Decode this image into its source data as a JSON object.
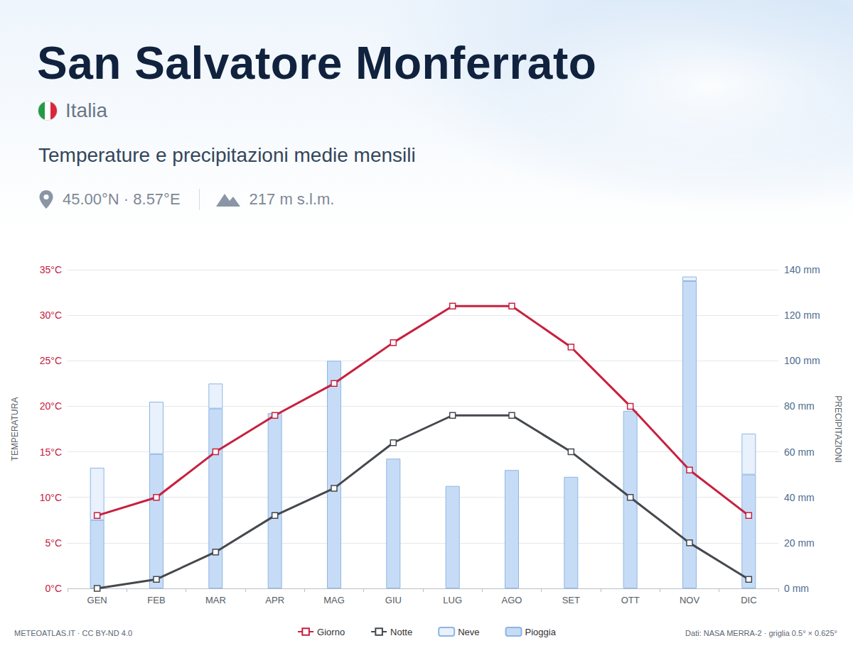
{
  "header": {
    "title": "San Salvatore Monferrato",
    "country": "Italia",
    "subtitle": "Temperature e precipitazioni medie mensili",
    "coordinates": "45.00°N · 8.57°E",
    "elevation": "217 m s.l.m."
  },
  "footer": {
    "left": "METEOATLAS.IT · CC BY-ND 4.0",
    "right": "Dati: NASA MERRA-2 · griglia 0.5° × 0.625°"
  },
  "chart_data": {
    "type": "bar",
    "categories": [
      "GEN",
      "FEB",
      "MAR",
      "APR",
      "MAG",
      "GIU",
      "LUG",
      "AGO",
      "SET",
      "OTT",
      "NOV",
      "DIC"
    ],
    "ylabel": "TEMPERATURA",
    "y2label": "PRECIPITAZIONI",
    "ylim": [
      0,
      35
    ],
    "yticks": [
      {
        "value": 0,
        "label": "0°C"
      },
      {
        "value": 5,
        "label": "5°C"
      },
      {
        "value": 10,
        "label": "10°C"
      },
      {
        "value": 15,
        "label": "15°C"
      },
      {
        "value": 20,
        "label": "20°C"
      },
      {
        "value": 25,
        "label": "25°C"
      },
      {
        "value": 30,
        "label": "30°C"
      },
      {
        "value": 35,
        "label": "35°C"
      }
    ],
    "y2lim": [
      0,
      140
    ],
    "y2ticks": [
      {
        "value": 0,
        "label": "0 mm"
      },
      {
        "value": 20,
        "label": "20 mm"
      },
      {
        "value": 40,
        "label": "40 mm"
      },
      {
        "value": 60,
        "label": "60 mm"
      },
      {
        "value": 80,
        "label": "80 mm"
      },
      {
        "value": 100,
        "label": "100 mm"
      },
      {
        "value": 120,
        "label": "120 mm"
      },
      {
        "value": 140,
        "label": "140 mm"
      }
    ],
    "grid": true,
    "legend": "bottom",
    "stacked": true,
    "series": [
      {
        "name": "Giorno",
        "type": "line",
        "color": "#c8203f",
        "marker": "square",
        "values": [
          8,
          10,
          15,
          19,
          22.5,
          27,
          31,
          31,
          26.5,
          20,
          13,
          8
        ]
      },
      {
        "name": "Notte",
        "type": "line",
        "color": "#45484d",
        "marker": "square",
        "values": [
          0,
          1,
          4,
          8,
          11,
          16,
          19,
          19,
          15,
          10,
          5,
          1
        ]
      },
      {
        "name": "Neve",
        "type": "bar",
        "axis": "y2",
        "color": "#e8f1fc",
        "values": [
          23,
          23,
          11,
          0,
          0,
          0,
          0,
          0,
          0,
          0,
          2,
          18
        ]
      },
      {
        "name": "Pioggia",
        "type": "bar",
        "axis": "y2",
        "color": "#c6dcf6",
        "values": [
          30,
          59,
          79,
          77,
          100,
          57,
          45,
          52,
          49,
          78,
          135,
          50
        ]
      }
    ]
  }
}
